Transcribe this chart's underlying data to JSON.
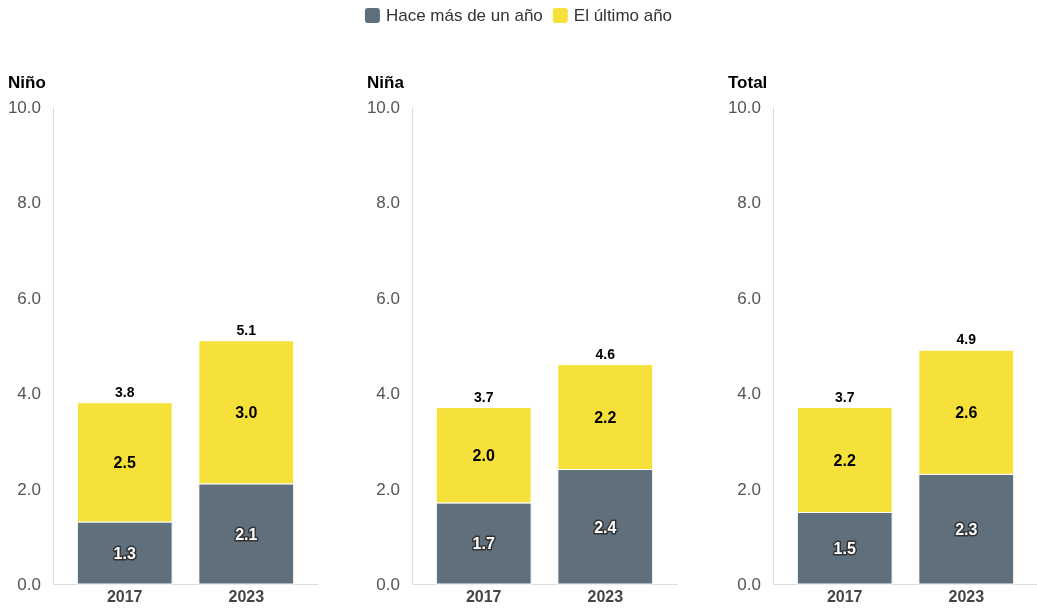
{
  "chart_data": [
    {
      "type": "bar",
      "title": "Niño",
      "categories": [
        "2017",
        "2023"
      ],
      "stacked": true,
      "legend": "top",
      "ylim": [
        0,
        10
      ],
      "yticks": [
        {
          "value": 0,
          "label": "0.0"
        },
        {
          "value": 2,
          "label": "2.0"
        },
        {
          "value": 4,
          "label": "4.0"
        },
        {
          "value": 6,
          "label": "6.0"
        },
        {
          "value": 8,
          "label": "8.0"
        },
        {
          "value": 10,
          "label": "10.0"
        }
      ],
      "totals": [
        "3.8",
        "5.1"
      ],
      "series": [
        {
          "name": "Hace más de un año",
          "color": "#5f6f7c",
          "values": [
            1.3,
            2.1
          ],
          "value_labels": [
            "1.3",
            "2.1"
          ]
        },
        {
          "name": "El último año",
          "color": "#f6e03a",
          "values": [
            2.5,
            3.0
          ],
          "value_labels": [
            "2.5",
            "3.0"
          ]
        }
      ]
    },
    {
      "type": "bar",
      "title": "Niña",
      "categories": [
        "2017",
        "2023"
      ],
      "stacked": true,
      "ylim": [
        0,
        10
      ],
      "yticks": [
        {
          "value": 0,
          "label": "0.0"
        },
        {
          "value": 2,
          "label": "2.0"
        },
        {
          "value": 4,
          "label": "4.0"
        },
        {
          "value": 6,
          "label": "6.0"
        },
        {
          "value": 8,
          "label": "8.0"
        },
        {
          "value": 10,
          "label": "10.0"
        }
      ],
      "totals": [
        "3.7",
        "4.6"
      ],
      "series": [
        {
          "color": "#5f6f7c",
          "values": [
            1.7,
            2.4
          ],
          "value_labels": [
            "1.7",
            "2.4"
          ]
        },
        {
          "color": "#f6e03a",
          "values": [
            2.0,
            2.2
          ],
          "value_labels": [
            "2.0",
            "2.2"
          ]
        }
      ]
    },
    {
      "type": "bar",
      "title": "Total",
      "categories": [
        "2017",
        "2023"
      ],
      "stacked": true,
      "ylim": [
        0,
        10
      ],
      "yticks": [
        {
          "value": 0,
          "label": "0.0"
        },
        {
          "value": 2,
          "label": "2.0"
        },
        {
          "value": 4,
          "label": "4.0"
        },
        {
          "value": 6,
          "label": "6.0"
        },
        {
          "value": 8,
          "label": "8.0"
        },
        {
          "value": 10,
          "label": "10.0"
        }
      ],
      "totals": [
        "3.7",
        "4.9"
      ],
      "series": [
        {
          "color": "#5f6f7c",
          "values": [
            1.5,
            2.3
          ],
          "value_labels": [
            "1.5",
            "2.3"
          ]
        },
        {
          "color": "#f6e03a",
          "values": [
            2.2,
            2.6
          ],
          "value_labels": [
            "2.2",
            "2.6"
          ]
        }
      ]
    }
  ]
}
